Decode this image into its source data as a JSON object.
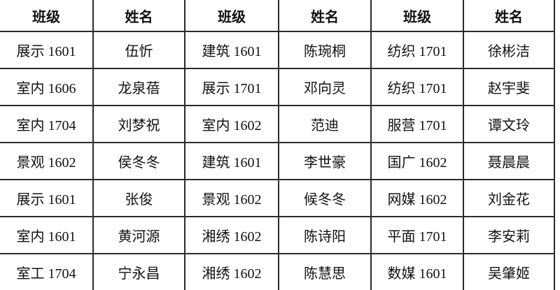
{
  "table": {
    "headers": [
      "班级",
      "姓名",
      "班级",
      "姓名",
      "班级",
      "姓名"
    ],
    "rows": [
      {
        "cells": [
          "展示 1601",
          "伍忻",
          "建筑 1601",
          "陈琬桐",
          "纺织 1701",
          "徐彬洁"
        ]
      },
      {
        "cells": [
          "室内 1606",
          "龙泉蓓",
          "展示 1701",
          "邓向灵",
          "纺织 1701",
          "赵宇斐"
        ]
      },
      {
        "cells": [
          "室内 1704",
          "刘梦祝",
          "室内 1602",
          "范迪",
          "服营 1701",
          "谭文玲"
        ]
      },
      {
        "cells": [
          "景观 1602",
          "侯冬冬",
          "建筑 1601",
          "李世豪",
          "国广 1602",
          "聂晨晨"
        ]
      },
      {
        "cells": [
          "展示 1601",
          "张俊",
          "景观 1602",
          "候冬冬",
          "网媒 1602",
          "刘金花"
        ]
      },
      {
        "cells": [
          "室内 1601",
          "黄河源",
          "湘绣 1602",
          "陈诗阳",
          "平面 1701",
          "李安莉"
        ]
      },
      {
        "cells": [
          "室工 1704",
          "宁永昌",
          "湘绣 1602",
          "陈慧思",
          "数媒 1601",
          "吴肇姬"
        ]
      }
    ]
  },
  "colors": {
    "background": "#ffffff",
    "border": "#2b2b2b",
    "text": "#111111"
  }
}
